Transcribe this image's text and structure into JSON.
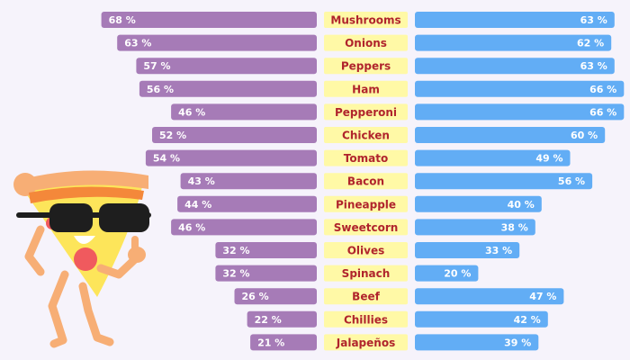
{
  "chart_data": {
    "type": "bar",
    "categories": [
      "Mushrooms",
      "Onions",
      "Peppers",
      "Ham",
      "Pepperoni",
      "Chicken",
      "Tomato",
      "Bacon",
      "Pineapple",
      "Sweetcorn",
      "Olives",
      "Spinach",
      "Beef",
      "Chillies",
      "Jalapeños"
    ],
    "series": [
      {
        "values": [
          68,
          63,
          57,
          56,
          46,
          52,
          54,
          43,
          44,
          46,
          32,
          32,
          26,
          22,
          21
        ],
        "labels": [
          "68 %",
          "63 %",
          "57 %",
          "56 %",
          "46 %",
          "52 %",
          "54 %",
          "43 %",
          "44 %",
          "46 %",
          "32 %",
          "32 %",
          "26 %",
          "22 %",
          "21 %"
        ],
        "color": "#a67bb7"
      },
      {
        "values": [
          63,
          62,
          63,
          66,
          66,
          60,
          49,
          56,
          40,
          38,
          33,
          20,
          47,
          42,
          39
        ],
        "labels": [
          "63 %",
          "62 %",
          "63 %",
          "66 %",
          "66 %",
          "60 %",
          "49 %",
          "56 %",
          "40 %",
          "38 %",
          "33 %",
          "20 %",
          "47 %",
          "42 %",
          "39 %"
        ],
        "color": "#62adf5"
      }
    ],
    "label_bg": "#fff9a6",
    "label_color": "#b0242c",
    "grid": false,
    "legend": "none"
  },
  "illustration": {
    "icon": "cool-pizza-slice-mascot-icon",
    "colors": {
      "crust": "#f7ae75",
      "cheese": "#fde55a",
      "pepperoni": "#f05a5e",
      "glasses": "#1e1e1e",
      "sauce": "#f4883a"
    }
  }
}
